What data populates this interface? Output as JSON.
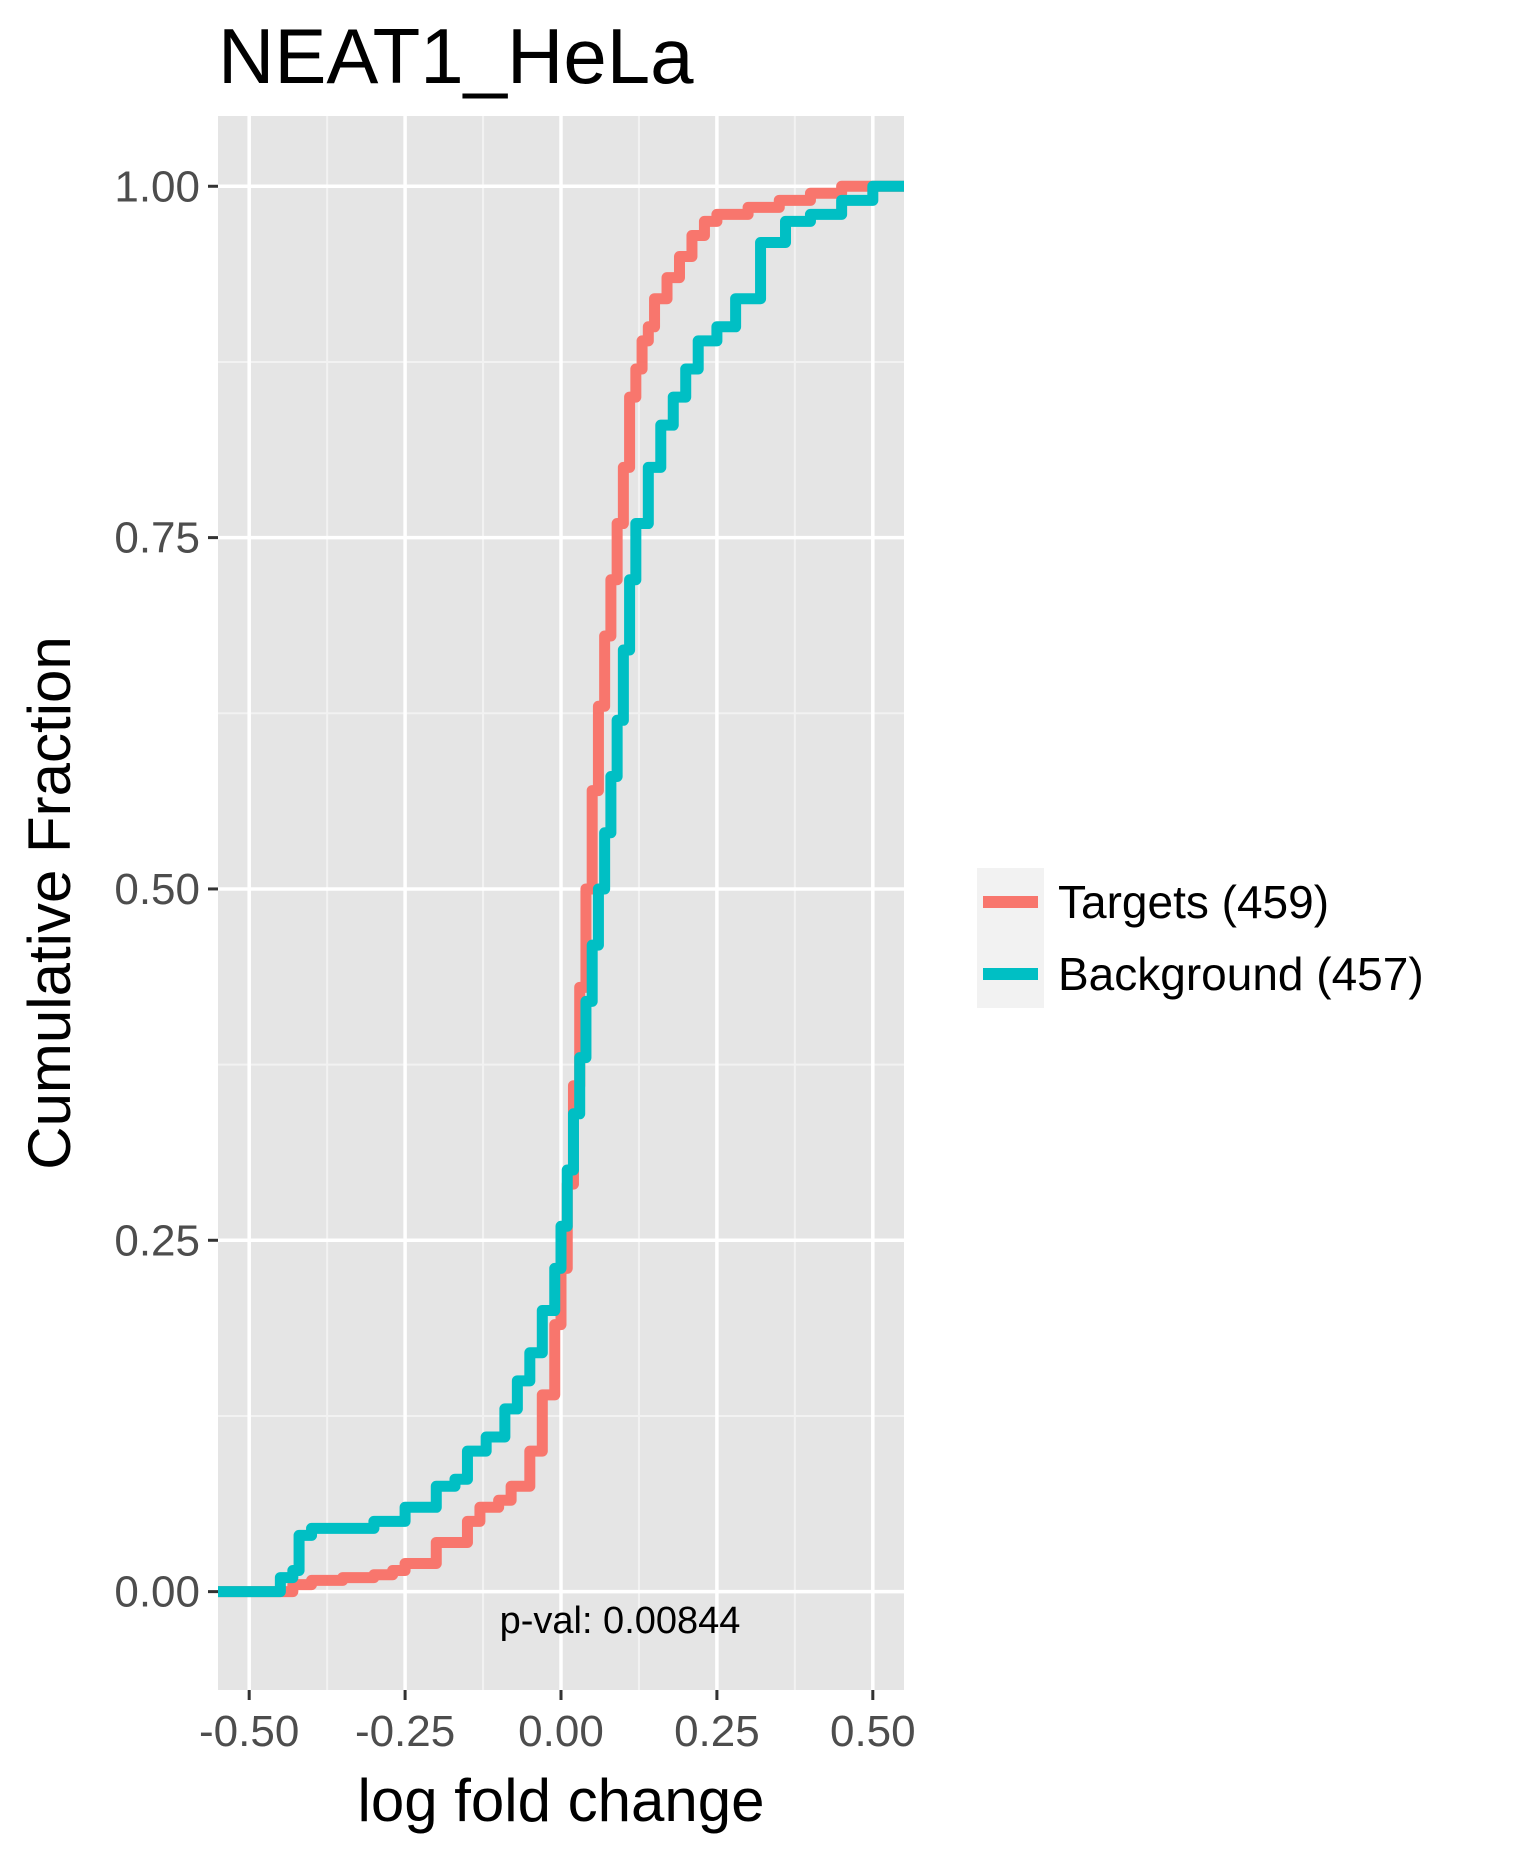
{
  "chart_data": {
    "type": "line",
    "title": "NEAT1_HeLa",
    "xlabel": "log fold change",
    "ylabel": "Cumulative Fraction",
    "xlim": [
      -0.55,
      0.55
    ],
    "ylim": [
      -0.07,
      1.05
    ],
    "x_ticks": [
      "-0.50",
      "-0.25",
      "0.00",
      "0.25",
      "0.50"
    ],
    "y_ticks": [
      "0.00",
      "0.25",
      "0.50",
      "0.75",
      "1.00"
    ],
    "x_tick_values": [
      -0.5,
      -0.25,
      0,
      0.25,
      0.5
    ],
    "y_tick_values": [
      0,
      0.25,
      0.5,
      0.75,
      1
    ],
    "grid": true,
    "background": "#e5e5e5",
    "legend_position": "right",
    "annotation": "p-val:  0.00844",
    "series": [
      {
        "name": "Targets (459)",
        "color": "#f8766d",
        "x": [
          -0.55,
          -0.47,
          -0.43,
          -0.4,
          -0.35,
          -0.3,
          -0.27,
          -0.25,
          -0.2,
          -0.15,
          -0.13,
          -0.1,
          -0.08,
          -0.05,
          -0.03,
          -0.01,
          0.0,
          0.01,
          0.02,
          0.03,
          0.04,
          0.05,
          0.06,
          0.07,
          0.08,
          0.09,
          0.1,
          0.11,
          0.12,
          0.13,
          0.14,
          0.15,
          0.17,
          0.19,
          0.21,
          0.23,
          0.25,
          0.3,
          0.35,
          0.4,
          0.45,
          0.5,
          0.55
        ],
        "y": [
          0.0,
          0.0,
          0.005,
          0.008,
          0.01,
          0.012,
          0.015,
          0.02,
          0.035,
          0.05,
          0.06,
          0.065,
          0.075,
          0.1,
          0.14,
          0.19,
          0.23,
          0.29,
          0.36,
          0.43,
          0.5,
          0.57,
          0.63,
          0.68,
          0.72,
          0.76,
          0.8,
          0.85,
          0.87,
          0.89,
          0.9,
          0.92,
          0.935,
          0.95,
          0.965,
          0.975,
          0.98,
          0.985,
          0.99,
          0.995,
          1.0,
          1.0,
          1.0
        ],
        "ecdf": true
      },
      {
        "name": "Background (457)",
        "color": "#00bfc4",
        "x": [
          -0.55,
          -0.5,
          -0.45,
          -0.43,
          -0.42,
          -0.4,
          -0.35,
          -0.3,
          -0.25,
          -0.2,
          -0.17,
          -0.15,
          -0.12,
          -0.09,
          -0.07,
          -0.05,
          -0.03,
          -0.01,
          0.0,
          0.01,
          0.02,
          0.03,
          0.04,
          0.05,
          0.06,
          0.07,
          0.08,
          0.09,
          0.1,
          0.11,
          0.12,
          0.14,
          0.16,
          0.18,
          0.2,
          0.22,
          0.25,
          0.28,
          0.32,
          0.36,
          0.4,
          0.45,
          0.5,
          0.55
        ],
        "y": [
          0.0,
          0.0,
          0.01,
          0.015,
          0.04,
          0.045,
          0.045,
          0.05,
          0.06,
          0.075,
          0.08,
          0.1,
          0.11,
          0.13,
          0.15,
          0.17,
          0.2,
          0.23,
          0.26,
          0.3,
          0.34,
          0.38,
          0.42,
          0.46,
          0.5,
          0.54,
          0.58,
          0.62,
          0.67,
          0.72,
          0.76,
          0.8,
          0.83,
          0.85,
          0.87,
          0.89,
          0.9,
          0.92,
          0.96,
          0.975,
          0.98,
          0.99,
          1.0,
          1.0
        ],
        "ecdf": true
      }
    ]
  }
}
